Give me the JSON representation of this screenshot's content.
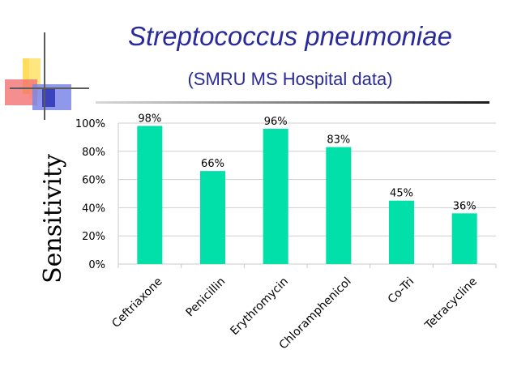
{
  "slide": {
    "title": "Streptococcus pneumoniae",
    "subtitle": "(SMRU MS Hospital data)"
  },
  "colors": {
    "bar": "#00e0a8",
    "title": "#2a2a9a",
    "grid": "#cfcfcf",
    "text": "#000000"
  },
  "chart_data": {
    "type": "bar",
    "title": "",
    "xlabel": "",
    "ylabel": "Sensitivity",
    "categories": [
      "Ceftriaxone",
      "Penicillin",
      "Erythromycin",
      "Chloramphenicol",
      "Co-Tri",
      "Tetracycline"
    ],
    "values": [
      98,
      66,
      96,
      83,
      45,
      36
    ],
    "data_labels": [
      "98%",
      "66%",
      "96%",
      "83%",
      "45%",
      "36%"
    ],
    "ylim": [
      0,
      100
    ],
    "yticks": [
      0,
      20,
      40,
      60,
      80,
      100
    ],
    "ytick_labels": [
      "0%",
      "20%",
      "40%",
      "60%",
      "80%",
      "100%"
    ],
    "grid": true,
    "legend": "none"
  }
}
